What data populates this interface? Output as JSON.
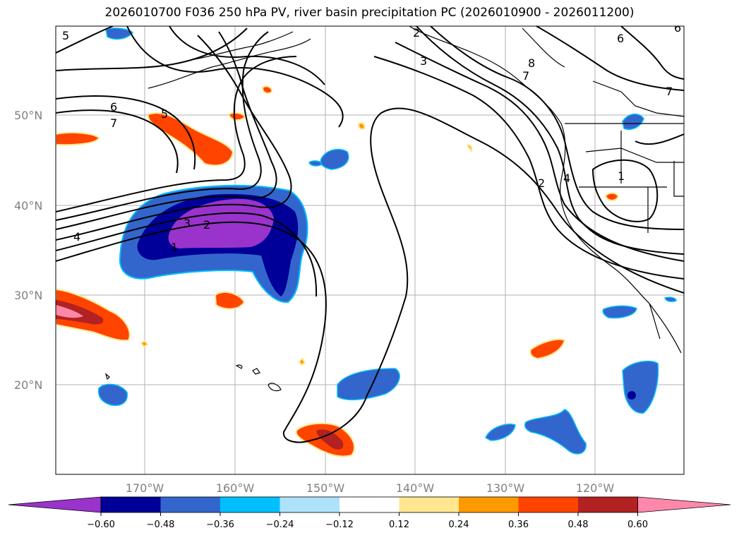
{
  "title": "2026010700 F036 250 hPa PV, river basin precipitation PC (2026010900 - 2026011200)",
  "map": {
    "lat_labels": [
      "50°N",
      "40°N",
      "30°N",
      "20°N"
    ],
    "lon_labels": [
      "170°W",
      "160°W",
      "150°W",
      "140°W",
      "130°W",
      "120°W"
    ]
  },
  "contour_labels": [
    "5",
    "6",
    "7",
    "4",
    "3",
    "2",
    "1",
    "3",
    "2",
    "5",
    "6",
    "8",
    "7",
    "6",
    "7",
    "2",
    "4",
    "1"
  ],
  "colorbar": {
    "ticks": [
      "−0.60",
      "−0.48",
      "−0.36",
      "−0.24",
      "−0.12",
      "0.12",
      "0.24",
      "0.36",
      "0.48",
      "0.60"
    ],
    "colors": [
      "#9933cc",
      "#000099",
      "#3366cc",
      "#00bfff",
      "#aee2fb",
      "#ffffff",
      "#ffe68f",
      "#ff9900",
      "#ff4400",
      "#b22222",
      "#ff88aa"
    ]
  }
}
